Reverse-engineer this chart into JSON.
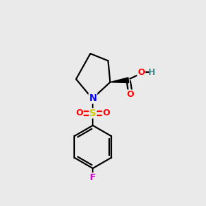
{
  "background_color": "#eaeaea",
  "atom_colors": {
    "C": "#000000",
    "N": "#0000ff",
    "O": "#ff0000",
    "S": "#cccc00",
    "F": "#cc00cc",
    "H": "#4a9090"
  },
  "figsize": [
    3.0,
    3.0
  ],
  "dpi": 100,
  "xlim": [
    0,
    10
  ],
  "ylim": [
    0,
    10
  ]
}
